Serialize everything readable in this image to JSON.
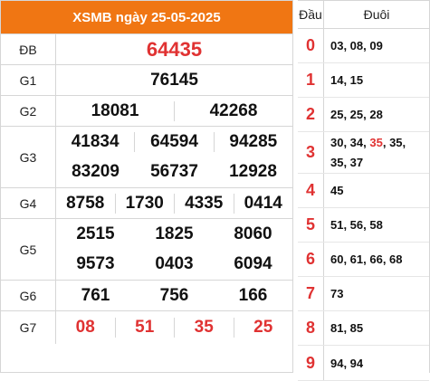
{
  "header": {
    "title": "XSMB ngày 25-05-2025"
  },
  "prizes": {
    "db": {
      "label": "ĐB",
      "numbers": [
        "64435"
      ]
    },
    "g1": {
      "label": "G1",
      "numbers": [
        "76145"
      ]
    },
    "g2": {
      "label": "G2",
      "numbers": [
        "18081",
        "42268"
      ]
    },
    "g3": {
      "label": "G3",
      "numbers": [
        "41834",
        "64594",
        "94285",
        "83209",
        "56737",
        "12928"
      ]
    },
    "g4": {
      "label": "G4",
      "numbers": [
        "8758",
        "1730",
        "4335",
        "0414"
      ]
    },
    "g5": {
      "label": "G5",
      "numbers": [
        "2515",
        "1825",
        "8060",
        "9573",
        "0403",
        "6094"
      ]
    },
    "g6": {
      "label": "G6",
      "numbers": [
        "761",
        "756",
        "166"
      ]
    },
    "g7": {
      "label": "G7",
      "numbers": [
        "08",
        "51",
        "35",
        "25"
      ]
    }
  },
  "loto": {
    "dau_header": "Đầu",
    "duoi_header": "Đuôi",
    "rows": [
      {
        "dau": "0",
        "t1": "03, 08, 09"
      },
      {
        "dau": "1",
        "t1": "14, 15"
      },
      {
        "dau": "2",
        "t1": "25, 25, 28"
      },
      {
        "dau": "3",
        "t1": "30, 34, ",
        "hl": "35",
        "t2": ", 35,",
        "t3": "35, 37"
      },
      {
        "dau": "4",
        "t1": "45"
      },
      {
        "dau": "5",
        "t1": "51, 56, 58"
      },
      {
        "dau": "6",
        "t1": "60, 61, 66, 68"
      },
      {
        "dau": "7",
        "t1": "73"
      },
      {
        "dau": "8",
        "t1": "81, 85"
      },
      {
        "dau": "9",
        "t1": "94, 94"
      }
    ]
  },
  "colors": {
    "header_bg": "#f07613",
    "accent_red": "#e03232"
  }
}
